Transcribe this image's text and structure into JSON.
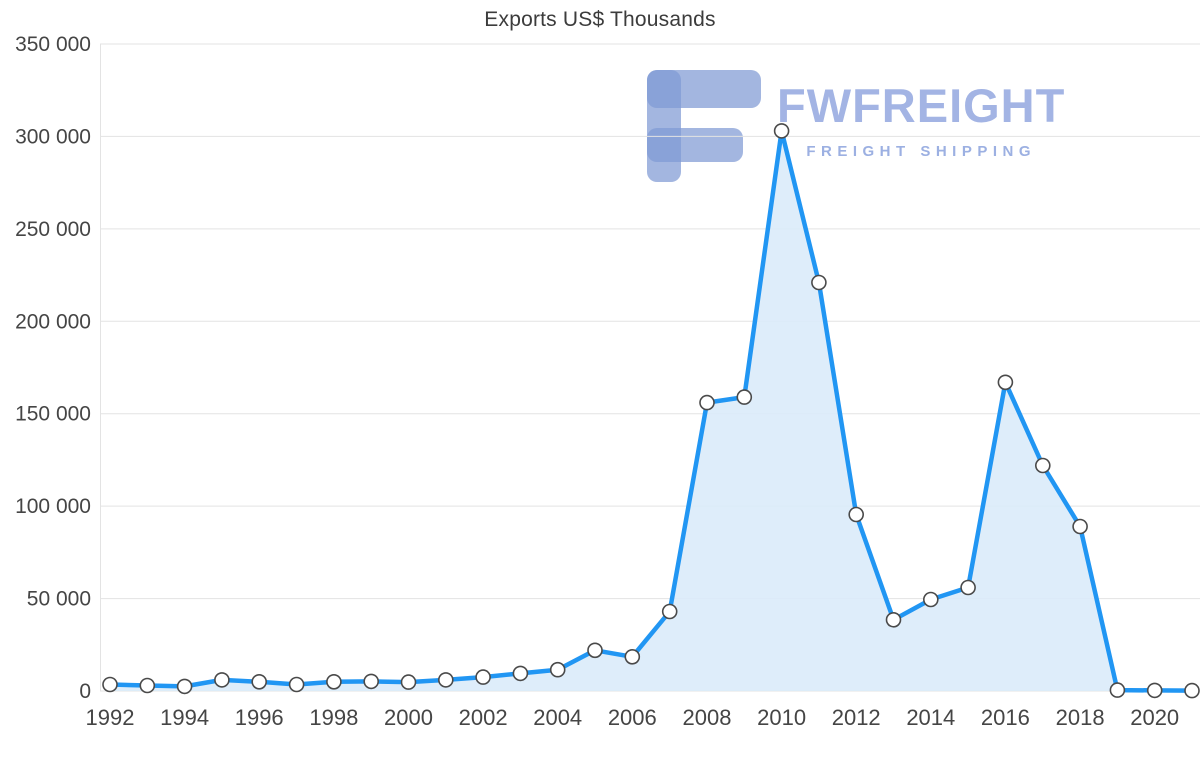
{
  "chart_data": {
    "type": "area",
    "title": "Exports US$ Thousands",
    "xlabel": "",
    "ylabel": "",
    "x": [
      1992,
      1993,
      1994,
      1995,
      1996,
      1997,
      1998,
      1999,
      2000,
      2001,
      2002,
      2003,
      2004,
      2005,
      2006,
      2007,
      2008,
      2009,
      2010,
      2011,
      2012,
      2013,
      2014,
      2015,
      2016,
      2017,
      2018,
      2019,
      2020,
      2021
    ],
    "values": [
      3500,
      3000,
      2500,
      6000,
      5000,
      3500,
      5000,
      5200,
      4800,
      6000,
      7500,
      9500,
      11500,
      22000,
      18500,
      43000,
      156000,
      159000,
      303000,
      221000,
      95500,
      38500,
      49500,
      56000,
      167000,
      122000,
      89000,
      500,
      300,
      200
    ],
    "ylim": [
      0,
      350000
    ],
    "grid": true,
    "legend": "none",
    "yticks": [
      {
        "value": 0,
        "label": "0"
      },
      {
        "value": 50000,
        "label": "50 000"
      },
      {
        "value": 100000,
        "label": "100 000"
      },
      {
        "value": 150000,
        "label": "150 000"
      },
      {
        "value": 200000,
        "label": "200 000"
      },
      {
        "value": 250000,
        "label": "250 000"
      },
      {
        "value": 300000,
        "label": "300 000"
      },
      {
        "value": 350000,
        "label": "350 000"
      }
    ],
    "xticks": [
      {
        "value": 1992,
        "label": "1992"
      },
      {
        "value": 1994,
        "label": "1994"
      },
      {
        "value": 1996,
        "label": "1996"
      },
      {
        "value": 1998,
        "label": "1998"
      },
      {
        "value": 2000,
        "label": "2000"
      },
      {
        "value": 2002,
        "label": "2002"
      },
      {
        "value": 2004,
        "label": "2004"
      },
      {
        "value": 2006,
        "label": "2006"
      },
      {
        "value": 2008,
        "label": "2008"
      },
      {
        "value": 2010,
        "label": "2010"
      },
      {
        "value": 2012,
        "label": "2012"
      },
      {
        "value": 2014,
        "label": "2014"
      },
      {
        "value": 2016,
        "label": "2016"
      },
      {
        "value": 2018,
        "label": "2018"
      },
      {
        "value": 2020,
        "label": "2020"
      }
    ],
    "line_color": "#2196f3",
    "fill_color": "#d9eaf9",
    "grid_color": "#e3e3e3",
    "marker_fill": "#ffffff",
    "marker_stroke": "#4a4a4a"
  },
  "watermark": {
    "brand": "FWFREIGHT",
    "tagline": "FREIGHT SHIPPING",
    "brand_color": "#a3b4e4",
    "tagline_color": "#9cb0e2",
    "logo_color": "#7f9ad4"
  }
}
